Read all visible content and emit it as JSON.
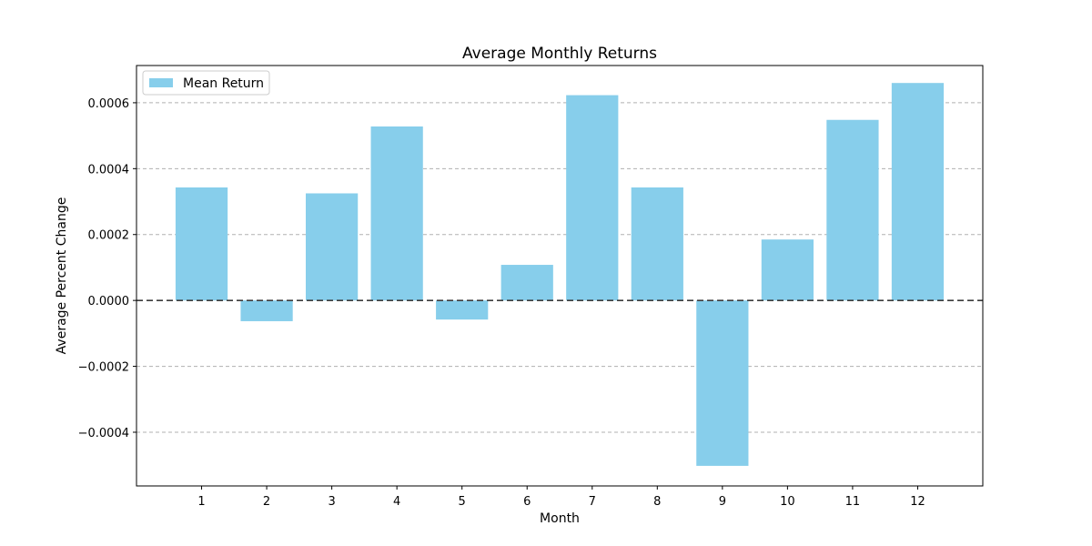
{
  "chart_data": {
    "type": "bar",
    "title": "Average Monthly Returns",
    "xlabel": "Month",
    "ylabel": "Average Percent Change",
    "categories": [
      "1",
      "2",
      "3",
      "4",
      "5",
      "6",
      "7",
      "8",
      "9",
      "10",
      "11",
      "12"
    ],
    "series": [
      {
        "name": "Mean Return",
        "color": "#87ceeb",
        "values": [
          0.000343,
          -6.3e-05,
          0.000325,
          0.000528,
          -5.8e-05,
          0.000108,
          0.000623,
          0.000343,
          -0.000502,
          0.000185,
          0.000548,
          0.00066
        ]
      }
    ],
    "ylim": [
      -0.000563,
      0.000713
    ],
    "yticks": [
      -0.0004,
      -0.0002,
      0.0,
      0.0002,
      0.0004,
      0.0006
    ],
    "ytick_labels": [
      "−0.0004",
      "−0.0002",
      "0.0000",
      "0.0002",
      "0.0004",
      "0.0006"
    ],
    "grid": "y-dashed",
    "zero_line": "dashed",
    "legend_position": "upper-left"
  }
}
